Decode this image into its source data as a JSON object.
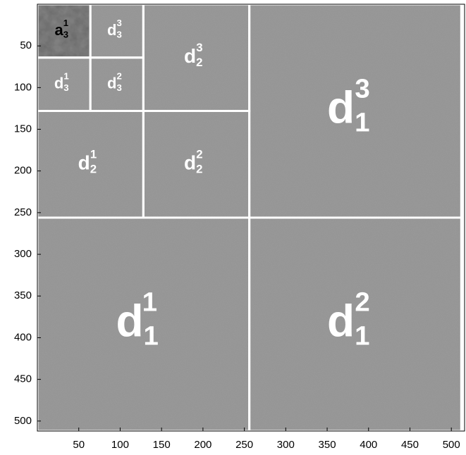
{
  "chart_data": {
    "type": "image",
    "xlim": [
      0,
      516
    ],
    "ylim": [
      0,
      512
    ],
    "y_inverted": true,
    "xticks": [
      50,
      100,
      150,
      200,
      250,
      300,
      350,
      400,
      450,
      500
    ],
    "yticks": [
      50,
      100,
      150,
      200,
      250,
      300,
      350,
      400,
      450,
      500
    ],
    "color": "#9b9b9b",
    "approx_color": "#8a8a8a",
    "line_color": "#ffffff",
    "regions": [
      {
        "label": "a",
        "sub": "3",
        "sup": "1",
        "x": [
          0,
          64
        ],
        "y": [
          0,
          64
        ]
      },
      {
        "label": "d",
        "sub": "3",
        "sup": "3",
        "x": [
          64,
          128
        ],
        "y": [
          0,
          64
        ]
      },
      {
        "label": "d",
        "sub": "3",
        "sup": "1",
        "x": [
          0,
          64
        ],
        "y": [
          64,
          128
        ]
      },
      {
        "label": "d",
        "sub": "3",
        "sup": "2",
        "x": [
          64,
          128
        ],
        "y": [
          64,
          128
        ]
      },
      {
        "label": "d",
        "sub": "2",
        "sup": "3",
        "x": [
          128,
          256
        ],
        "y": [
          0,
          128
        ]
      },
      {
        "label": "d",
        "sub": "2",
        "sup": "1",
        "x": [
          0,
          128
        ],
        "y": [
          128,
          256
        ]
      },
      {
        "label": "d",
        "sub": "2",
        "sup": "2",
        "x": [
          128,
          256
        ],
        "y": [
          128,
          256
        ]
      },
      {
        "label": "d",
        "sub": "1",
        "sup": "3",
        "x": [
          256,
          512
        ],
        "y": [
          0,
          256
        ]
      },
      {
        "label": "d",
        "sub": "1",
        "sup": "1",
        "x": [
          0,
          256
        ],
        "y": [
          256,
          512
        ]
      },
      {
        "label": "d",
        "sub": "1",
        "sup": "2",
        "x": [
          256,
          512
        ],
        "y": [
          256,
          512
        ]
      }
    ]
  }
}
